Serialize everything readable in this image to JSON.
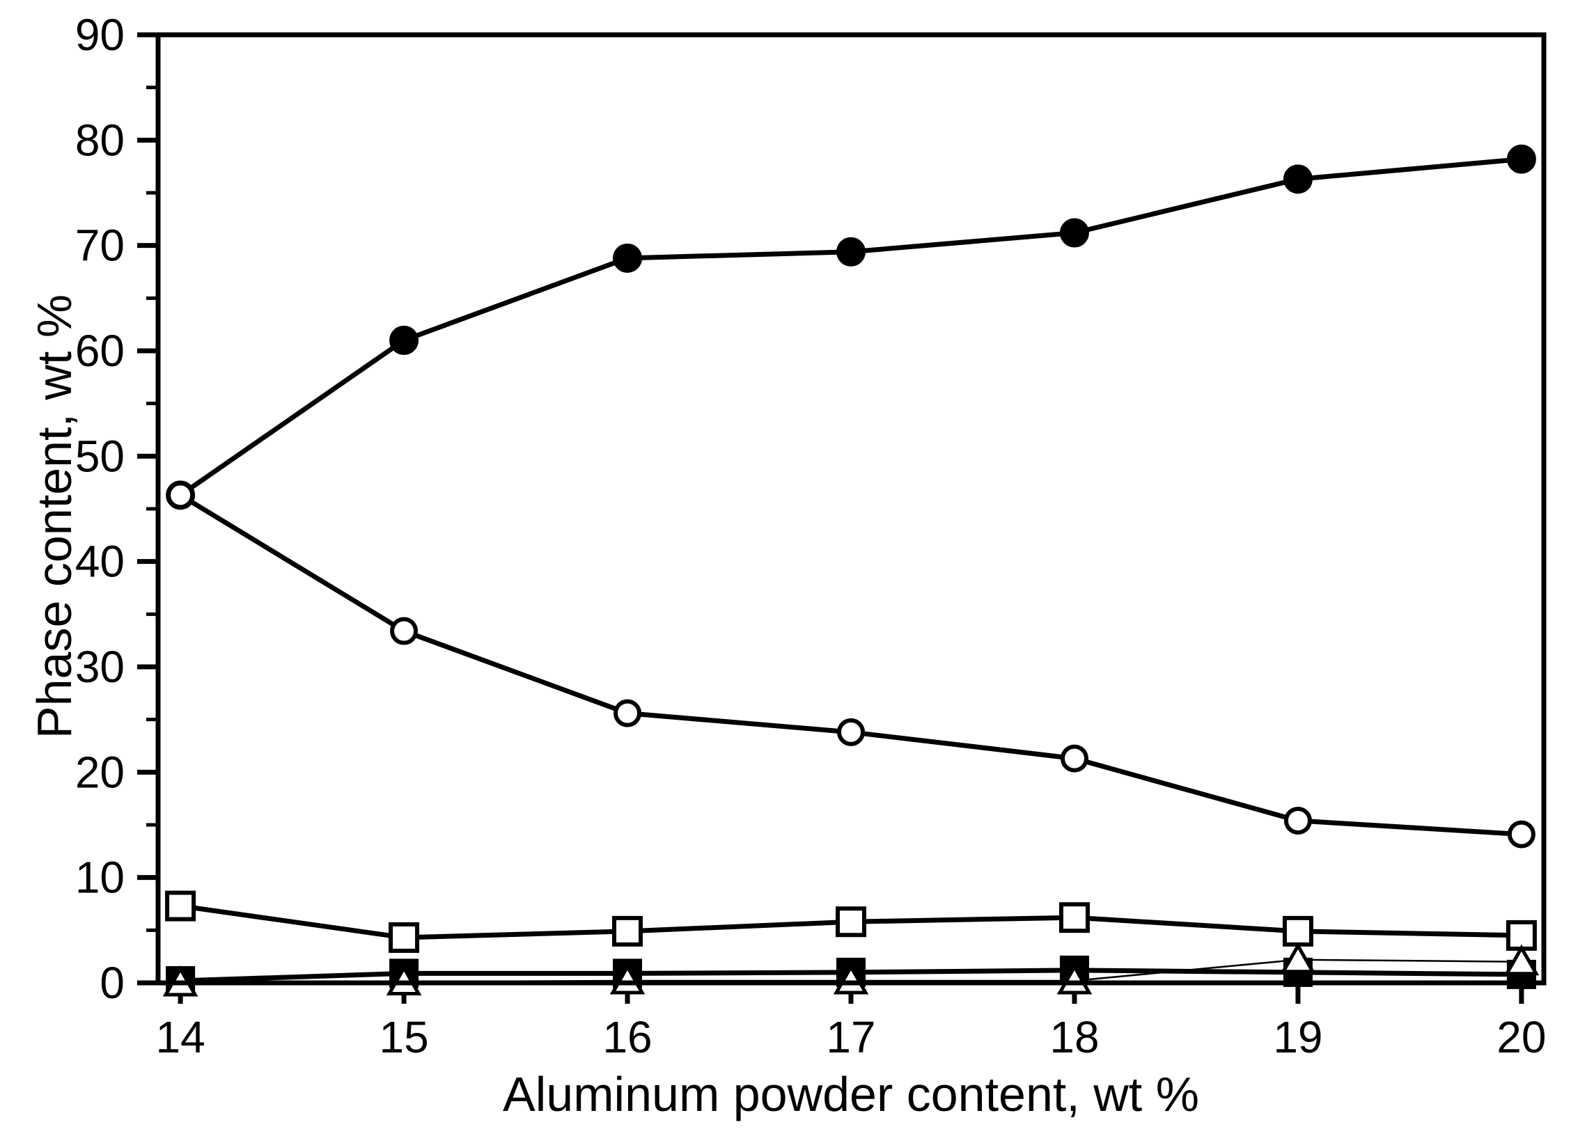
{
  "chart_data": {
    "type": "line",
    "title": "",
    "xlabel": "Aluminum powder content, wt %",
    "ylabel": "Phase content, wt %",
    "grid": false,
    "legend_position": "none",
    "x": [
      14,
      15,
      16,
      17,
      18,
      19,
      20
    ],
    "xlim": [
      13.9,
      20.1
    ],
    "ylim": [
      0,
      90
    ],
    "x_tick_labels": [
      "14",
      "15",
      "16",
      "17",
      "18",
      "19",
      "20"
    ],
    "y_tick_labels": [
      "0",
      "10",
      "20",
      "30",
      "40",
      "50",
      "60",
      "70",
      "80",
      "90"
    ],
    "y_ticks_major": [
      0,
      10,
      20,
      30,
      40,
      50,
      60,
      70,
      80,
      90
    ],
    "y_ticks_minor": [
      5,
      15,
      25,
      35,
      45,
      55,
      65,
      75,
      85
    ],
    "series": [
      {
        "name": "open-square-phase",
        "marker": "square-open",
        "line": "thick",
        "values": [
          7.3,
          4.3,
          4.9,
          5.8,
          6.2,
          4.9,
          4.5
        ]
      },
      {
        "name": "filled-square-phase",
        "marker": "square-filled",
        "line": "thick",
        "values": [
          0.2,
          0.9,
          0.9,
          1.0,
          1.2,
          1.0,
          0.8
        ]
      },
      {
        "name": "open-triangle-phase",
        "marker": "triangle-open",
        "line": "thin",
        "values": [
          0.0,
          0.1,
          0.2,
          0.2,
          0.2,
          2.2,
          2.0
        ]
      },
      {
        "name": "filled-circle-phase",
        "marker": "circle-filled",
        "line": "thick",
        "values": [
          46.3,
          61.0,
          68.8,
          69.4,
          71.2,
          76.3,
          78.2
        ]
      },
      {
        "name": "open-circle-phase",
        "marker": "circle-open",
        "line": "thick",
        "values": [
          46.3,
          33.4,
          25.6,
          23.8,
          21.3,
          15.4,
          14.1
        ]
      }
    ],
    "colors": {
      "foreground": "#000000",
      "background": "#ffffff"
    }
  }
}
